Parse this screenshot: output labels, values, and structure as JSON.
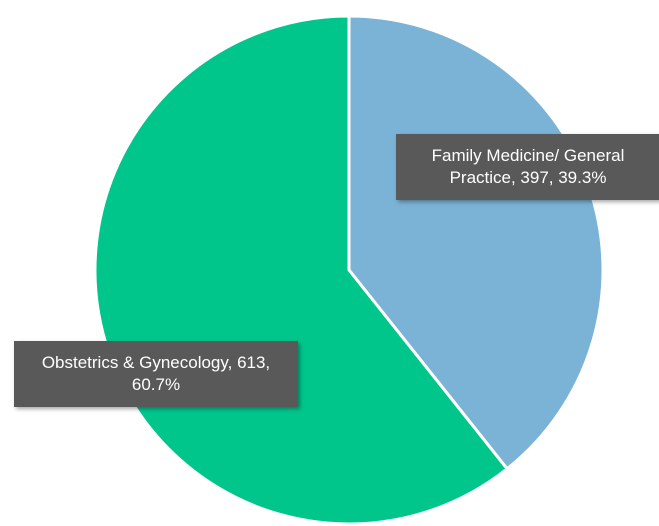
{
  "chart_data": {
    "type": "pie",
    "values": [
      397,
      613
    ],
    "value_labels": [
      "Family Medicine/ General Practice, 397, 39.3%",
      "Obstetrics & Gynecology, 613, 60.7%"
    ],
    "colors": [
      "#7bb3d7",
      "#00c68c"
    ]
  }
}
